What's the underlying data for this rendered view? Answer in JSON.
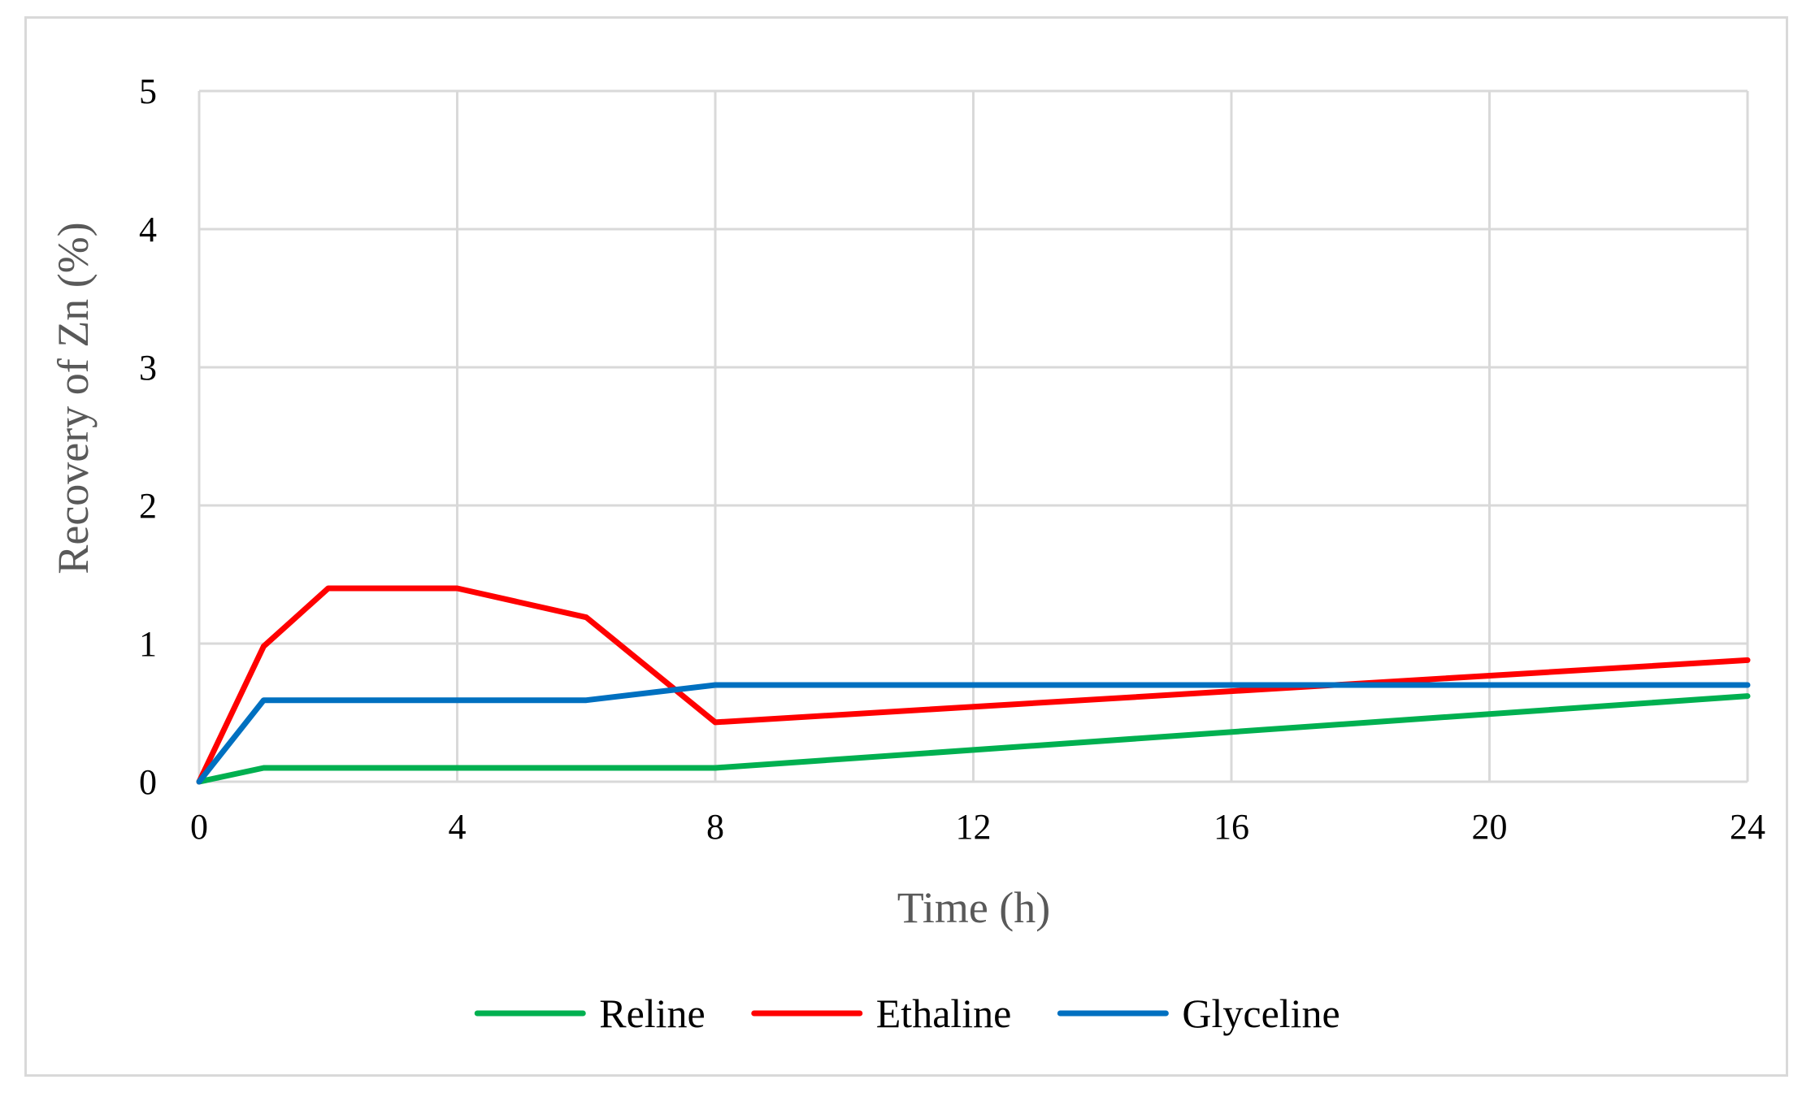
{
  "chart_data": {
    "type": "line",
    "title": "",
    "xlabel": "Time (h)",
    "ylabel": "Recovery of Zn (%)",
    "xlim": [
      0,
      24
    ],
    "ylim": [
      0,
      5
    ],
    "x_ticks": [
      0,
      4,
      8,
      12,
      16,
      20,
      24
    ],
    "y_ticks": [
      0,
      1,
      2,
      3,
      4,
      5
    ],
    "grid": true,
    "legend_position": "bottom",
    "series": [
      {
        "name": "Reline",
        "color": "#00b050",
        "points": [
          [
            0,
            0
          ],
          [
            1,
            0.1
          ],
          [
            2,
            0.1
          ],
          [
            4,
            0.1
          ],
          [
            6,
            0.1
          ],
          [
            8,
            0.1
          ],
          [
            24,
            0.62
          ]
        ]
      },
      {
        "name": "Ethaline",
        "color": "#ff0000",
        "points": [
          [
            0,
            0
          ],
          [
            1,
            0.98
          ],
          [
            2,
            1.4
          ],
          [
            4,
            1.4
          ],
          [
            6,
            1.19
          ],
          [
            8,
            0.43
          ],
          [
            24,
            0.88
          ]
        ]
      },
      {
        "name": "Glyceline",
        "color": "#0070c0",
        "points": [
          [
            0,
            0
          ],
          [
            1,
            0.59
          ],
          [
            2,
            0.59
          ],
          [
            4,
            0.59
          ],
          [
            6,
            0.59
          ],
          [
            8,
            0.7
          ],
          [
            24,
            0.7
          ]
        ]
      }
    ]
  }
}
